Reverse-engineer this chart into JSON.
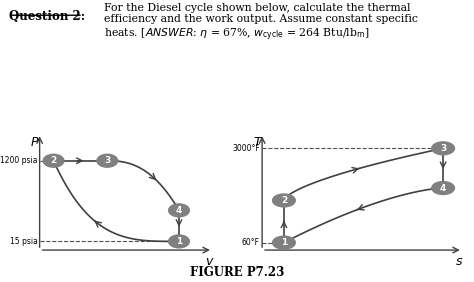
{
  "figure_label": "FIGURE P7.23",
  "pv_ylabel": "P",
  "pv_xlabel": "v",
  "ts_ylabel": "T",
  "ts_xlabel": "s",
  "pv_label_1200": "1200 psia",
  "pv_label_15": "15 psia",
  "ts_label_3000": "3000°F",
  "ts_label_60": "60°F",
  "node_color": "#808080",
  "line_color": "#404040",
  "dashed_color": "#505050",
  "bg_color": "white"
}
